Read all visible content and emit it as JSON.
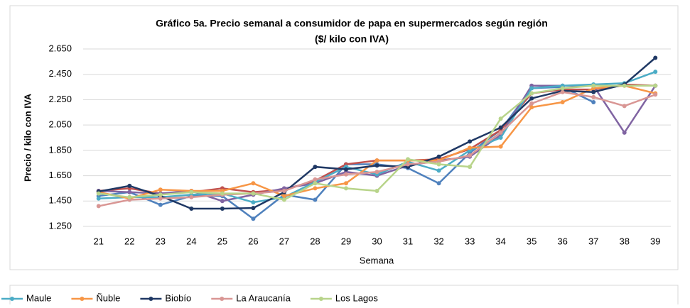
{
  "chart_data": {
    "type": "line",
    "title": "Gráfico 5a. Precio semanal a consumidor de papa en supermercados según región",
    "subtitle": "($/ kilo con IVA)",
    "x_label": "Semana",
    "y_label": "Precio / kilo con IVA",
    "categories": [
      "21",
      "22",
      "23",
      "24",
      "25",
      "26",
      "27",
      "28",
      "29",
      "30",
      "31",
      "32",
      "33",
      "34",
      "35",
      "36",
      "37",
      "38",
      "39"
    ],
    "ylim": [
      1250,
      2650
    ],
    "yticks": [
      {
        "value": 1250,
        "label": "1.250"
      },
      {
        "value": 1450,
        "label": "1.450"
      },
      {
        "value": 1650,
        "label": "1.650"
      },
      {
        "value": 1850,
        "label": "1.850"
      },
      {
        "value": 2050,
        "label": "2.050"
      },
      {
        "value": 2250,
        "label": "2.250"
      },
      {
        "value": 2450,
        "label": "2.450"
      },
      {
        "value": 2650,
        "label": "2.650"
      }
    ],
    "grid": true,
    "series": [
      {
        "color": "#4f81bd",
        "values": [
          1490,
          1520,
          1420,
          1490,
          1490,
          1310,
          1500,
          1460,
          1740,
          1740,
          1710,
          1590,
          1830,
          2010,
          2340,
          2350,
          2230,
          null,
          null
        ]
      },
      {
        "color": "#c0504d",
        "values": [
          1530,
          1550,
          1510,
          1520,
          1550,
          1520,
          1540,
          1610,
          1740,
          1770,
          1770,
          1780,
          1860,
          2010,
          2300,
          2330,
          2330,
          2370,
          2360
        ]
      },
      {
        "color": "#8064a2",
        "values": [
          1530,
          1520,
          1510,
          1530,
          1450,
          1500,
          1550,
          1590,
          1680,
          1650,
          1730,
          1770,
          1800,
          1970,
          2360,
          2360,
          2360,
          1990,
          2360
        ]
      },
      {
        "name": "Maule",
        "color": "#4bacc6",
        "values": [
          1470,
          1480,
          1480,
          1500,
          1510,
          1440,
          1480,
          1600,
          1720,
          1660,
          1760,
          1690,
          1850,
          1950,
          2340,
          2360,
          2370,
          2380,
          2470
        ]
      },
      {
        "name": "Ñuble",
        "color": "#f79646",
        "values": [
          1520,
          1470,
          1540,
          1530,
          1530,
          1590,
          1490,
          1550,
          1590,
          1770,
          1770,
          1770,
          1870,
          1880,
          2190,
          2230,
          2340,
          2360,
          2300
        ]
      },
      {
        "name": "Biobío",
        "color": "#1f3864",
        "values": [
          1525,
          1570,
          1490,
          1390,
          1390,
          1395,
          1520,
          1720,
          1700,
          1730,
          1720,
          1800,
          1920,
          2030,
          2260,
          2320,
          2310,
          2370,
          2580
        ]
      },
      {
        "name": "La Araucanía",
        "color": "#d99694",
        "values": [
          1410,
          1460,
          1470,
          1480,
          1500,
          1510,
          1530,
          1620,
          1660,
          1680,
          1740,
          1760,
          1810,
          1990,
          2220,
          2310,
          2270,
          2200,
          2290
        ]
      },
      {
        "name": "Los Lagos",
        "color": "#b8d48a",
        "values": [
          1510,
          1480,
          1500,
          1520,
          1510,
          1510,
          1460,
          1590,
          1550,
          1530,
          1780,
          1740,
          1720,
          2100,
          2300,
          2340,
          2360,
          2360,
          2360
        ]
      }
    ]
  }
}
